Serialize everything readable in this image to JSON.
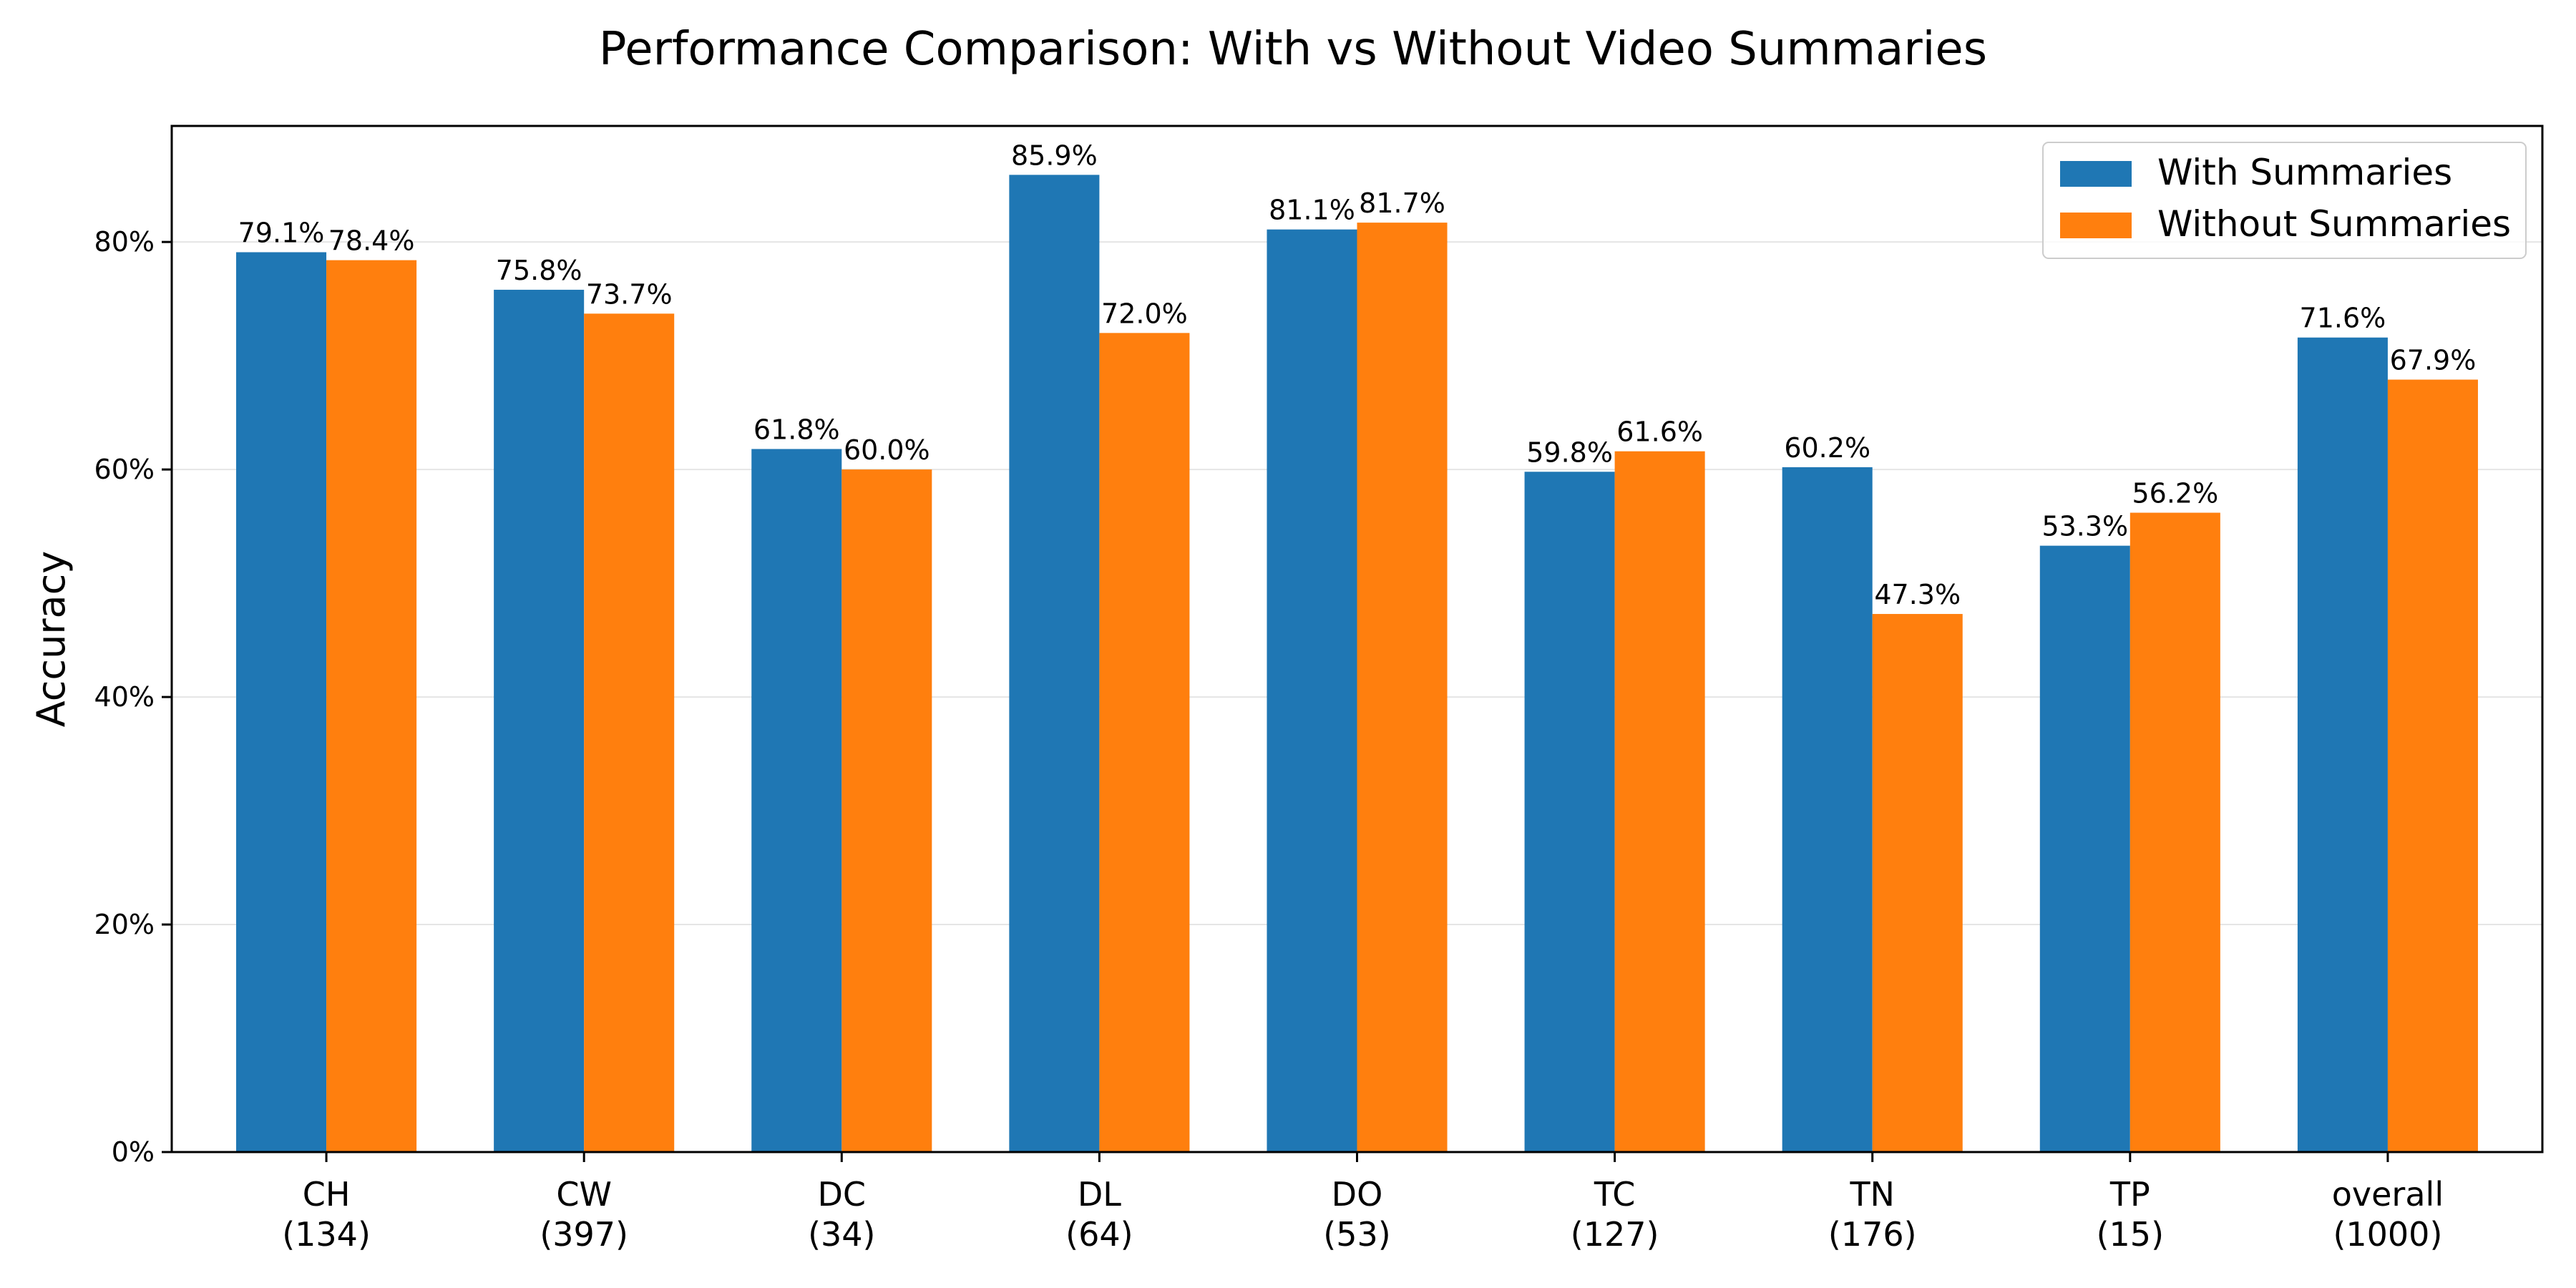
{
  "chart_data": {
    "type": "bar",
    "title": "Performance Comparison: With vs Without Video Summaries",
    "ylabel": "Accuracy",
    "xlabel": "",
    "categories": [
      {
        "name": "CH",
        "count": "(134)"
      },
      {
        "name": "CW",
        "count": "(397)"
      },
      {
        "name": "DC",
        "count": "(34)"
      },
      {
        "name": "DL",
        "count": "(64)"
      },
      {
        "name": "DO",
        "count": "(53)"
      },
      {
        "name": "TC",
        "count": "(127)"
      },
      {
        "name": "TN",
        "count": "(176)"
      },
      {
        "name": "TP",
        "count": "(15)"
      },
      {
        "name": "overall",
        "count": "(1000)"
      }
    ],
    "series": [
      {
        "name": "With Summaries",
        "color": "#1f77b4",
        "values": [
          79.1,
          75.8,
          61.8,
          85.9,
          81.1,
          59.8,
          60.2,
          53.3,
          71.6
        ],
        "labels": [
          "79.1%",
          "75.8%",
          "61.8%",
          "85.9%",
          "81.1%",
          "59.8%",
          "60.2%",
          "53.3%",
          "71.6%"
        ]
      },
      {
        "name": "Without Summaries",
        "color": "#ff7f0e",
        "values": [
          78.4,
          73.7,
          60.0,
          72.0,
          81.7,
          61.6,
          47.3,
          56.2,
          67.9
        ],
        "labels": [
          "78.4%",
          "73.7%",
          "60.0%",
          "72.0%",
          "81.7%",
          "61.6%",
          "47.3%",
          "56.2%",
          "67.9%"
        ]
      }
    ],
    "ylim": [
      0,
      90.2
    ],
    "yticks": [
      {
        "value": 0,
        "label": "0%"
      },
      {
        "value": 20,
        "label": "20%"
      },
      {
        "value": 40,
        "label": "40%"
      },
      {
        "value": 60,
        "label": "60%"
      },
      {
        "value": 80,
        "label": "80%"
      }
    ],
    "grid": "y",
    "legend_position": "top-right"
  }
}
